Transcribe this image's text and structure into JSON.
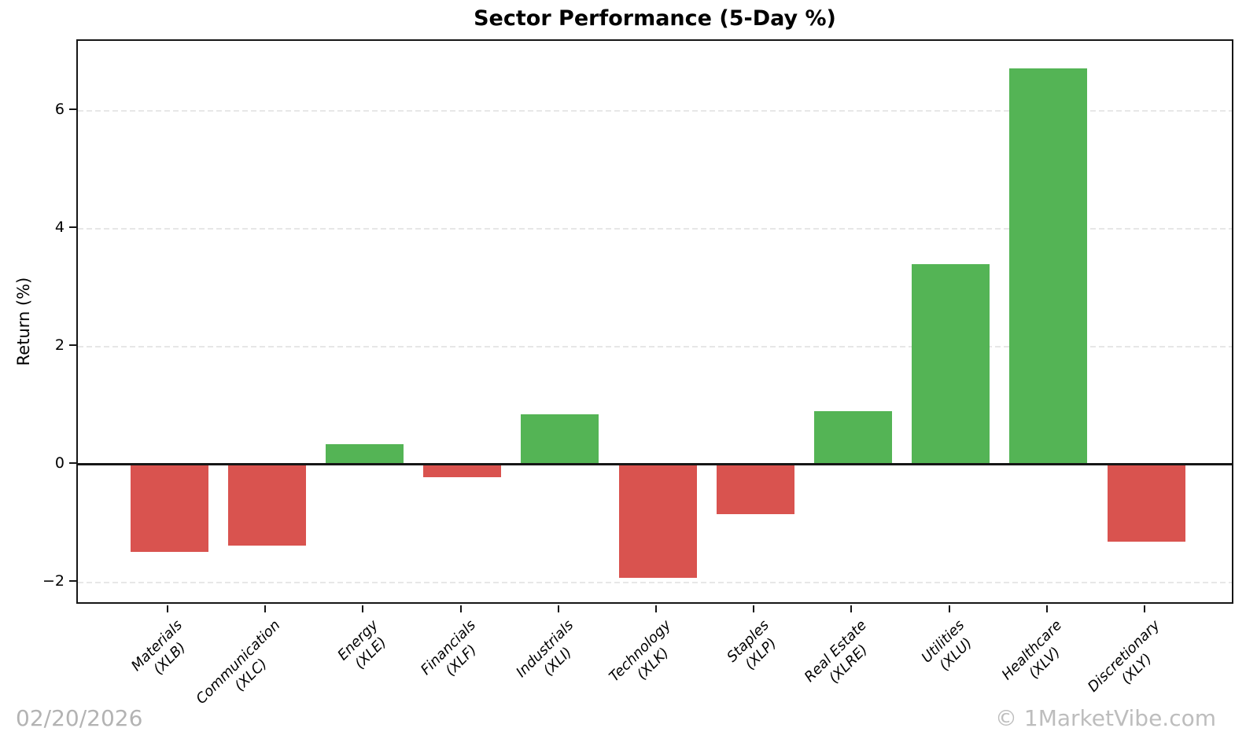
{
  "chart_data": {
    "type": "bar",
    "title": "Sector Performance (5-Day %)",
    "xlabel": "",
    "ylabel": "Return (%)",
    "ylim": [
      -2.39,
      7.19
    ],
    "grid": "horizontal dashed gridlines at y ticks, solid black line at 0",
    "legend": "none",
    "yticks": [
      {
        "value": -2,
        "label": "−2"
      },
      {
        "value": 0,
        "label": "0"
      },
      {
        "value": 2,
        "label": "2"
      },
      {
        "value": 4,
        "label": "4"
      },
      {
        "value": 6,
        "label": "6"
      }
    ],
    "categories": [
      "Materials (XLB)",
      "Communication (XLC)",
      "Energy (XLE)",
      "Financials (XLF)",
      "Industrials (XLI)",
      "Technology (XLK)",
      "Staples (XLP)",
      "Real Estate (XLRE)",
      "Utilities (XLU)",
      "Healthcare (XLV)",
      "Discretionary (XLY)"
    ],
    "bars": [
      {
        "sector": "Materials",
        "ticker": "(XLB)",
        "value": -1.48
      },
      {
        "sector": "Communication",
        "ticker": "(XLC)",
        "value": -1.38
      },
      {
        "sector": "Energy",
        "ticker": "(XLE)",
        "value": 0.35
      },
      {
        "sector": "Financials",
        "ticker": "(XLF)",
        "value": -0.22
      },
      {
        "sector": "Industrials",
        "ticker": "(XLI)",
        "value": 0.85
      },
      {
        "sector": "Technology",
        "ticker": "(XLK)",
        "value": -1.92
      },
      {
        "sector": "Staples",
        "ticker": "(XLP)",
        "value": -0.84
      },
      {
        "sector": "Real Estate",
        "ticker": "(XLRE)",
        "value": 0.91
      },
      {
        "sector": "Utilities",
        "ticker": "(XLU)",
        "value": 3.4
      },
      {
        "sector": "Healthcare",
        "ticker": "(XLV)",
        "value": 6.72
      },
      {
        "sector": "Discretionary",
        "ticker": "(XLY)",
        "value": -1.31
      }
    ],
    "colors": {
      "positive": "#54b455",
      "negative": "#d9534f",
      "gridline": "#e7e7e7",
      "axis": "#161616"
    }
  },
  "footer": {
    "date": "02/20/2026",
    "watermark": "© 1MarketVibe.com"
  }
}
